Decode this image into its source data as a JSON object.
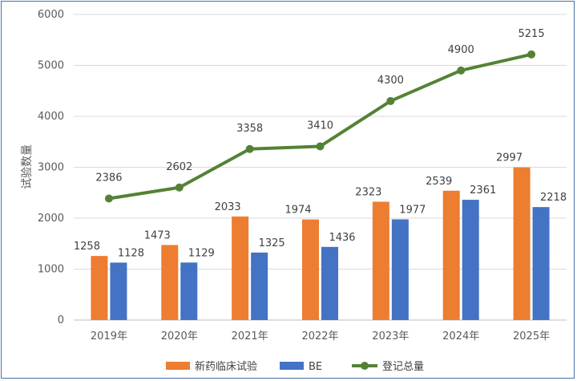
{
  "chart_data": {
    "type": "bar",
    "title": "",
    "xlabel": "",
    "ylabel": "试验数量",
    "ylim": [
      0,
      6000
    ],
    "yticks": [
      0,
      1000,
      2000,
      3000,
      4000,
      5000,
      6000
    ],
    "grid": true,
    "legend_position": "bottom",
    "categories": [
      "2019年",
      "2020年",
      "2021年",
      "2022年",
      "2023年",
      "2024年",
      "2025年"
    ],
    "series": [
      {
        "name": "新药临床试验",
        "kind": "bar",
        "color": "#ed7d31",
        "values": [
          1258,
          1473,
          2033,
          1974,
          2323,
          2539,
          2997
        ]
      },
      {
        "name": "BE",
        "kind": "bar",
        "color": "#4472c4",
        "values": [
          1128,
          1129,
          1325,
          1436,
          1977,
          2361,
          2218
        ]
      },
      {
        "name": "登记总量",
        "kind": "line",
        "color": "#548235",
        "values": [
          2386,
          2602,
          3358,
          3410,
          4300,
          4900,
          5215
        ]
      }
    ]
  }
}
